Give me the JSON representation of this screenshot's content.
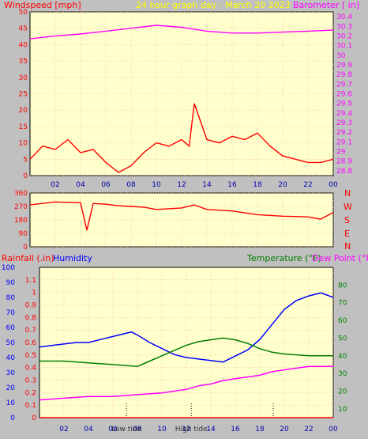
{
  "chart_data": [
    {
      "type": "line",
      "title": "24 hour graph day - March 20 2023",
      "left_label": "Windspeed [mph]",
      "right_label": "Barometer [ in]",
      "x_ticks": [
        "02",
        "04",
        "06",
        "08",
        "10",
        "12",
        "14",
        "16",
        "18",
        "20",
        "22",
        "00"
      ],
      "x_range": [
        0,
        24
      ],
      "y_left": {
        "range": [
          0,
          50
        ],
        "ticks": [
          "0",
          "5",
          "10",
          "15",
          "20",
          "25",
          "30",
          "35",
          "40",
          "45",
          "50"
        ]
      },
      "y_right": {
        "range": [
          28.75,
          30.45
        ],
        "ticks": [
          "28.8",
          "28.9",
          "29",
          "29.1",
          "29.2",
          "29.3",
          "29.4",
          "29.5",
          "29.6",
          "29.7",
          "29.8",
          "29.9",
          "30",
          "30.1",
          "30.2",
          "30.3",
          "30.4"
        ]
      },
      "grid": true,
      "series": [
        {
          "name": "Windspeed",
          "color": "#ff0000",
          "axis": "left",
          "x": [
            0,
            1,
            2,
            3,
            4,
            5,
            6,
            7,
            8,
            9,
            10,
            11,
            12,
            12.6,
            13,
            14,
            15,
            16,
            17,
            18,
            19,
            20,
            21,
            22,
            23,
            24
          ],
          "y": [
            5,
            9,
            8,
            11,
            7,
            8,
            4,
            1,
            3,
            7,
            10,
            9,
            11,
            9,
            22,
            11,
            10,
            12,
            11,
            13,
            9,
            6,
            5,
            4,
            4,
            5
          ]
        },
        {
          "name": "Barometer",
          "color": "#ff00ff",
          "axis": "right",
          "x": [
            0,
            2,
            4,
            6,
            8,
            10,
            12,
            14,
            16,
            18,
            20,
            22,
            24
          ],
          "y": [
            30.17,
            30.2,
            30.22,
            30.25,
            30.28,
            30.31,
            30.29,
            30.25,
            30.23,
            30.23,
            30.24,
            30.25,
            30.26
          ]
        }
      ]
    },
    {
      "type": "line",
      "title": "",
      "y_ticks": [
        "0",
        "90",
        "180",
        "270",
        "360"
      ],
      "y_range": [
        0,
        360
      ],
      "direction_labels": [
        "N",
        "W",
        "S",
        "E",
        "N"
      ],
      "grid": true,
      "series": [
        {
          "name": "Wind direction",
          "color": "#ff0000",
          "x": [
            0,
            2,
            4,
            4.5,
            5,
            6,
            7,
            8,
            9,
            10,
            12,
            13,
            14,
            16,
            18,
            20,
            22,
            23,
            24
          ],
          "y": [
            280,
            300,
            295,
            110,
            290,
            285,
            275,
            270,
            265,
            250,
            260,
            280,
            250,
            240,
            215,
            205,
            200,
            185,
            230
          ]
        }
      ]
    },
    {
      "type": "line",
      "title": "",
      "left_label_1": "Rainfall (.in)",
      "left_label_2": "Humidity",
      "right_label_1": "Temperature (°F)",
      "right_label_2": "Dew Point (°F)",
      "x_ticks": [
        "02",
        "04",
        "06",
        "08",
        "10",
        "12",
        "14",
        "16",
        "18",
        "20",
        "22",
        "00"
      ],
      "x_range": [
        0,
        24
      ],
      "y_humidity": {
        "range": [
          0,
          100
        ],
        "ticks": [
          "0",
          "10",
          "20",
          "30",
          "40",
          "50",
          "60",
          "70",
          "80",
          "90",
          "100"
        ]
      },
      "y_rain": {
        "range": [
          0,
          1.2
        ],
        "ticks": [
          "0",
          "0.1",
          "0.2",
          "0.3",
          "0.4",
          "0.5",
          "0.6",
          "0.7",
          "0.8",
          "0.9",
          "1",
          "1.1"
        ]
      },
      "y_temp": {
        "range": [
          5,
          90
        ],
        "ticks": [
          "10",
          "20",
          "30",
          "40",
          "50",
          "60",
          "70",
          "80"
        ]
      },
      "tide_labels": [
        {
          "x": 7.1,
          "label": "Low tide"
        },
        {
          "x": 12.4,
          "label": "High tide"
        },
        {
          "x": 19.1,
          "label": ""
        }
      ],
      "grid": true,
      "series": [
        {
          "name": "Humidity",
          "color": "#0000ff",
          "axis": "humidity",
          "x": [
            0,
            1,
            2,
            3,
            4,
            5,
            6,
            7,
            7.5,
            8,
            9,
            10,
            11,
            12,
            13,
            14,
            15,
            16,
            17,
            18,
            19,
            20,
            21,
            22,
            23,
            24
          ],
          "y": [
            47,
            48,
            49,
            50,
            50,
            52,
            54,
            56,
            57,
            55,
            50,
            46,
            42,
            40,
            39,
            38,
            37,
            41,
            45,
            52,
            62,
            72,
            78,
            81,
            83,
            80
          ]
        },
        {
          "name": "Temperature",
          "color": "#008000",
          "axis": "temp",
          "x": [
            0,
            2,
            4,
            6,
            8,
            9,
            10,
            11,
            12,
            13,
            14,
            15,
            16,
            17,
            18,
            19,
            20,
            22,
            24
          ],
          "y": [
            37,
            37,
            36,
            35,
            34,
            37,
            40,
            43,
            46,
            48,
            49,
            50,
            49,
            47,
            44,
            42,
            41,
            40,
            40
          ]
        },
        {
          "name": "Dew Point",
          "color": "#ff00ff",
          "axis": "temp",
          "x": [
            0,
            2,
            4,
            6,
            8,
            10,
            11,
            12,
            13,
            14,
            15,
            16,
            17,
            18,
            19,
            20,
            21,
            22,
            23,
            24
          ],
          "y": [
            15,
            16,
            17,
            17,
            18,
            19,
            20,
            21,
            23,
            24,
            26,
            27,
            28,
            29,
            31,
            32,
            33,
            34,
            34,
            34
          ]
        },
        {
          "name": "Rainfall",
          "color": "#ff0000",
          "axis": "rain",
          "x": [
            0,
            24
          ],
          "y": [
            0,
            0
          ]
        }
      ]
    }
  ]
}
